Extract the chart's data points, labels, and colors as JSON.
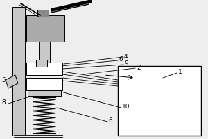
{
  "bg_color": "#eeeeee",
  "line_color": "#000000",
  "gray_light": "#c8c8c8",
  "gray_medium": "#aaaaaa",
  "gray_dark": "#888888",
  "white": "#ffffff",
  "frame_color": "#dddddd",
  "fs": 6.5,
  "lw": 0.7
}
